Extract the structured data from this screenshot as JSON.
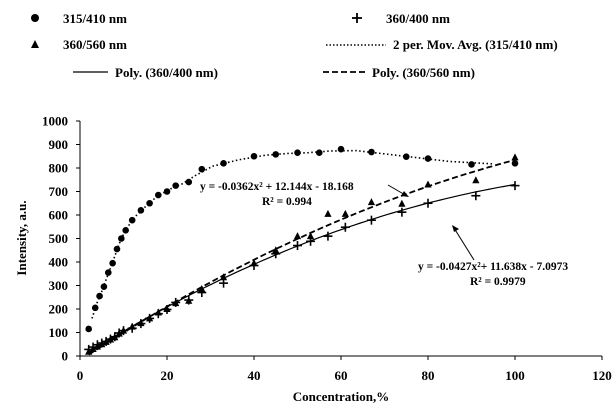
{
  "chart_data": {
    "type": "scatter",
    "xlabel": "Concentration,%",
    "ylabel": "Intensity, a.u.",
    "xlim": [
      0,
      120
    ],
    "ylim": [
      0,
      1000
    ],
    "xticks": [
      "0",
      "20",
      "40",
      "60",
      "80",
      "100",
      "120"
    ],
    "yticks": [
      "0",
      "100",
      "200",
      "300",
      "400",
      "500",
      "600",
      "700",
      "800",
      "900",
      "1000"
    ],
    "grid": false,
    "legend_position": "top",
    "series": [
      {
        "name": "315/410 nm",
        "marker": "circle",
        "x": [
          2,
          3.5,
          4.5,
          5.5,
          6.5,
          7.5,
          8.5,
          9.5,
          10.5,
          12,
          14,
          16,
          18,
          20,
          22,
          25,
          28,
          33,
          40,
          45,
          50,
          55,
          60,
          67,
          75,
          80,
          90,
          100
        ],
        "y": [
          115,
          205,
          255,
          295,
          355,
          395,
          455,
          500,
          535,
          578,
          620,
          650,
          685,
          700,
          725,
          740,
          795,
          820,
          850,
          858,
          865,
          865,
          880,
          868,
          848,
          840,
          815,
          820
        ]
      },
      {
        "name": "360/400 nm",
        "marker": "plus",
        "x": [
          2,
          3,
          4,
          5,
          6,
          7,
          8,
          9,
          10,
          12,
          14,
          16,
          18,
          20,
          22,
          25,
          28,
          33,
          40,
          45,
          50,
          53,
          57,
          61,
          67,
          74,
          80,
          91,
          100
        ],
        "y": [
          28,
          38,
          48,
          55,
          62,
          72,
          82,
          98,
          108,
          118,
          138,
          160,
          180,
          198,
          228,
          238,
          270,
          310,
          385,
          435,
          470,
          488,
          510,
          548,
          578,
          612,
          650,
          682,
          725
        ]
      },
      {
        "name": "360/560 nm",
        "marker": "triangle",
        "x": [
          2,
          3,
          4,
          5,
          6,
          7,
          8,
          9,
          10,
          12,
          14,
          16,
          18,
          20,
          22,
          25,
          28,
          33,
          40,
          45,
          50,
          53,
          57,
          61,
          67,
          74,
          80,
          91,
          100
        ],
        "y": [
          18,
          30,
          40,
          50,
          60,
          70,
          80,
          95,
          108,
          125,
          140,
          160,
          185,
          200,
          225,
          235,
          285,
          335,
          395,
          450,
          510,
          510,
          605,
          605,
          655,
          648,
          730,
          748,
          845
        ]
      }
    ],
    "trendlines": [
      {
        "name": "2 per. Mov. Avg. (315/410 nm)",
        "style": "dotted",
        "source": "315/410 nm",
        "type": "moving-average",
        "period": 2
      },
      {
        "name": "Poly. (360/400 nm)",
        "style": "solid",
        "source": "360/400 nm",
        "type": "polynomial",
        "coefficients": [
          -0.0427,
          11.638,
          -7.0973
        ],
        "equation": "y = -0.0427x²+ 11.638x - 7.0973",
        "r2_label": "R² = 0.9979"
      },
      {
        "name": "Poly. (360/560 nm)",
        "style": "dashed",
        "source": "360/560 nm",
        "type": "polynomial",
        "coefficients": [
          -0.0362,
          12.144,
          -18.168
        ],
        "equation": "y = -0.0362x² + 12.144x - 18.168",
        "r2_label": "R² = 0.994"
      }
    ]
  }
}
